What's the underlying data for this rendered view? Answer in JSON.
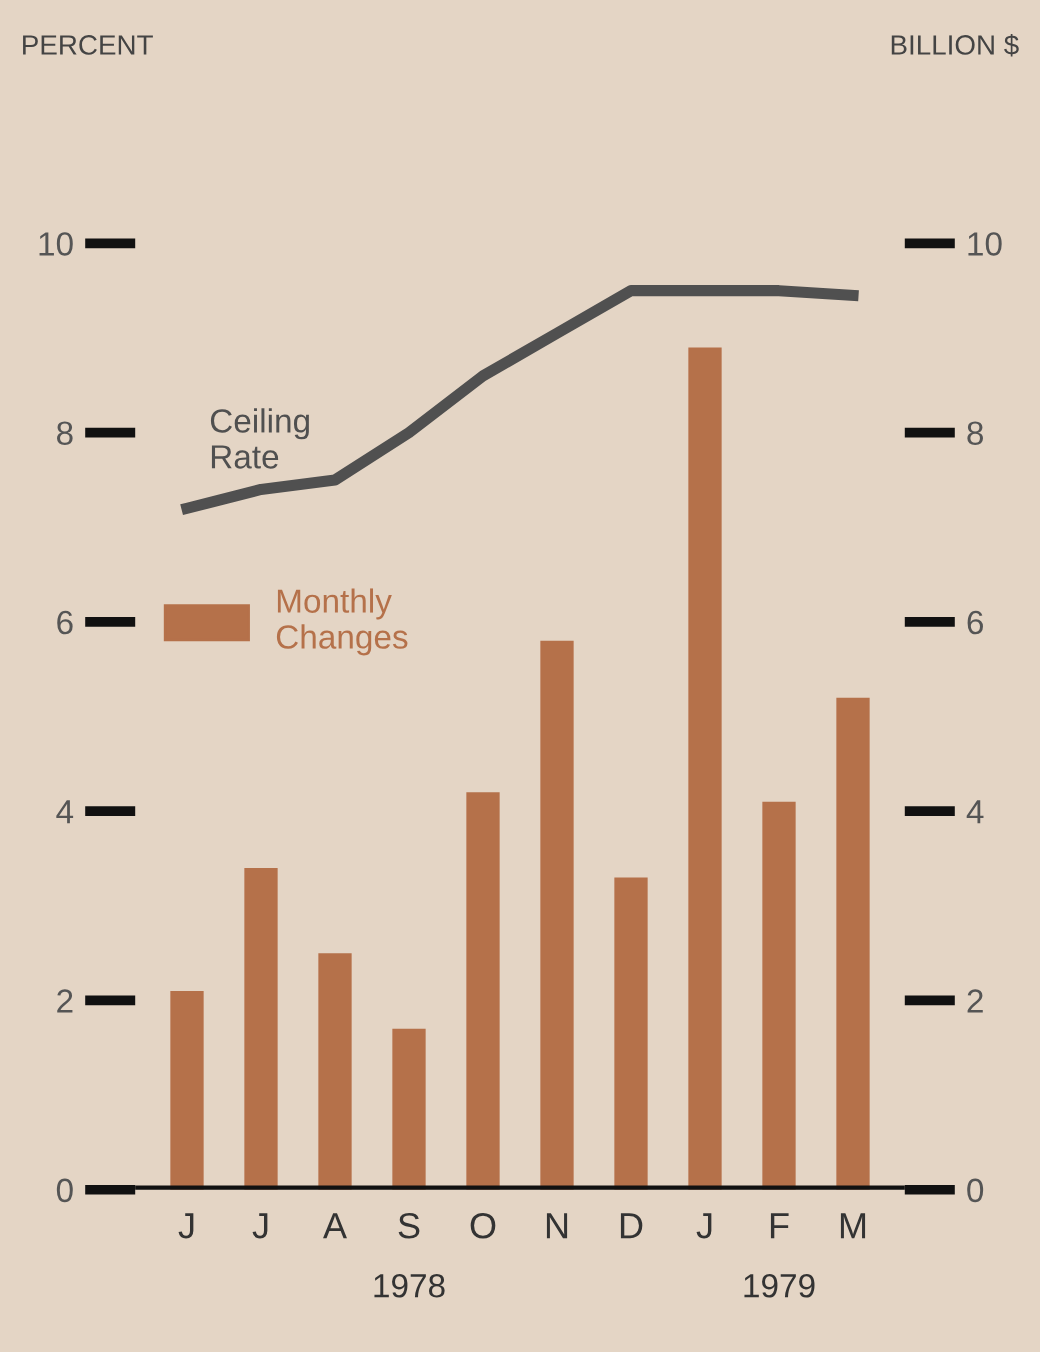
{
  "chart_data": {
    "type": "bar",
    "categories": [
      "J",
      "J",
      "A",
      "S",
      "O",
      "N",
      "D",
      "J",
      "F",
      "M"
    ],
    "series": [
      {
        "name": "Monthly Changes",
        "color": "#b5714a",
        "values": [
          2.1,
          3.4,
          2.5,
          1.7,
          4.2,
          5.8,
          3.3,
          8.9,
          4.1,
          5.2
        ]
      },
      {
        "name": "Ceiling Rate",
        "type": "line",
        "color": "#505050",
        "values": [
          7.2,
          7.4,
          7.5,
          8.0,
          8.6,
          9.05,
          9.5,
          9.5,
          9.5,
          9.45
        ]
      }
    ],
    "ylim": [
      0,
      10
    ],
    "yticks": [
      0,
      2,
      4,
      6,
      8,
      10
    ],
    "y2lim": [
      0,
      10
    ],
    "y2ticks": [
      0,
      2,
      4,
      6,
      8,
      10
    ],
    "annotations": [
      "PERCENT",
      "BILLION $",
      "1978",
      "1979"
    ],
    "legend": "left",
    "grid": false,
    "marker": "none",
    "line_style": "solid"
  }
}
